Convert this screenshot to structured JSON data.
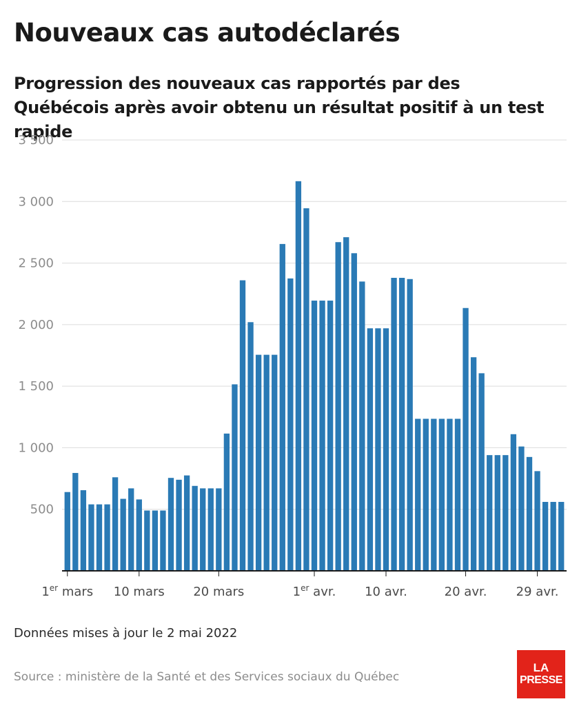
{
  "header": {
    "title": "Nouveaux cas autodéclarés",
    "subtitle": "Progression des nouveaux cas rapportés par des Québécois après avoir obtenu un résultat positif à un test rapide"
  },
  "footer": {
    "note": "Données mises à jour le 2 mai 2022",
    "source": "Source : ministère de la Santé et des Services sociaux du Québec",
    "logo_line1": "LA",
    "logo_line2": "PRESSE"
  },
  "chart_data": {
    "type": "bar",
    "bar_color": "#2a7ab5",
    "ylim": [
      0,
      3500
    ],
    "y_ticks": [
      {
        "value": 500,
        "label": "500"
      },
      {
        "value": 1000,
        "label": "1 000"
      },
      {
        "value": 1500,
        "label": "1 500"
      },
      {
        "value": 2000,
        "label": "2 000"
      },
      {
        "value": 2500,
        "label": "2 500"
      },
      {
        "value": 3000,
        "label": "3 000"
      },
      {
        "value": 3500,
        "label": "3 500"
      }
    ],
    "x_ticks": [
      {
        "index": 0,
        "label": "1",
        "sup": "er",
        "rest": " mars"
      },
      {
        "index": 9,
        "label": "10 mars"
      },
      {
        "index": 19,
        "label": "20 mars"
      },
      {
        "index": 31,
        "label": "1",
        "sup": "er",
        "rest": " avr."
      },
      {
        "index": 40,
        "label": "10 avr."
      },
      {
        "index": 50,
        "label": "20 avr."
      },
      {
        "index": 59,
        "label": "29 avr."
      }
    ],
    "grid": true,
    "values": [
      640,
      795,
      655,
      540,
      540,
      540,
      760,
      585,
      670,
      580,
      490,
      490,
      490,
      755,
      740,
      775,
      690,
      670,
      670,
      670,
      1115,
      1515,
      2360,
      2020,
      1755,
      1755,
      1755,
      2655,
      2375,
      3165,
      2945,
      2195,
      2195,
      2195,
      2670,
      2710,
      2580,
      2350,
      1970,
      1970,
      1970,
      2380,
      2380,
      2370,
      1235,
      1235,
      1235,
      1235,
      1235,
      1235,
      2135,
      1735,
      1605,
      940,
      940,
      940,
      1110,
      1010,
      925,
      810,
      560,
      560,
      560
    ]
  }
}
